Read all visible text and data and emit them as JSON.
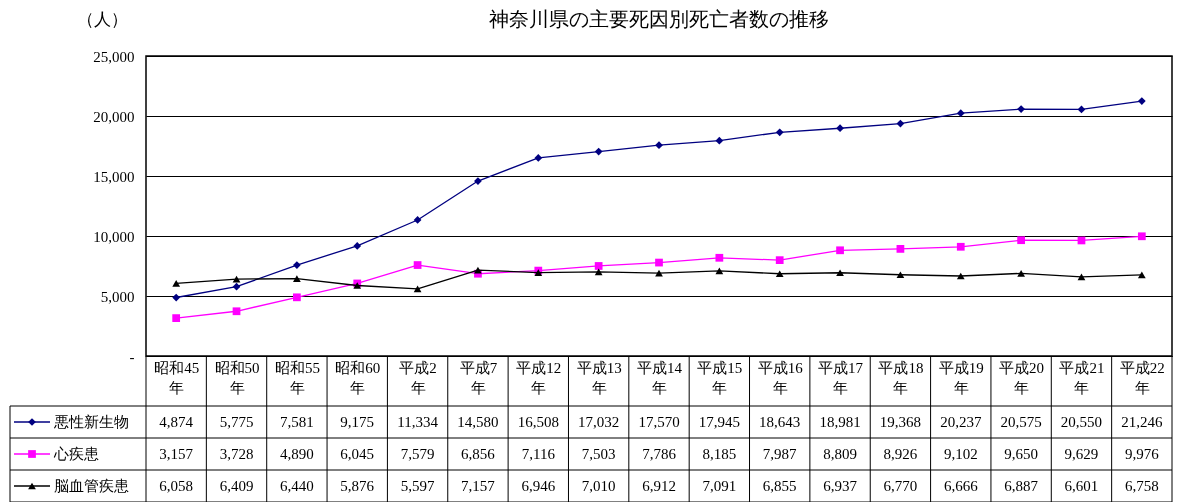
{
  "chart_data": {
    "type": "line",
    "title": "神奈川県の主要死因別死亡者数の推移",
    "ylabel": "（人）",
    "categories": [
      "昭和45年",
      "昭和50年",
      "昭和55年",
      "昭和60年",
      "平成2年",
      "平成7年",
      "平成12年",
      "平成13年",
      "平成14年",
      "平成15年",
      "平成16年",
      "平成17年",
      "平成18年",
      "平成19年",
      "平成20年",
      "平成21年",
      "平成22年"
    ],
    "series": [
      {
        "name": "悪性新生物",
        "color": "#000080",
        "marker": "diamond",
        "values": [
          4874,
          5775,
          7581,
          9175,
          11334,
          14580,
          16508,
          17032,
          17570,
          17945,
          18643,
          18981,
          19368,
          20237,
          20575,
          20550,
          21246
        ],
        "value_labels": [
          "4,874",
          "5,775",
          "7,581",
          "9,175",
          "11,334",
          "14,580",
          "16,508",
          "17,032",
          "17,570",
          "17,945",
          "18,643",
          "18,981",
          "19,368",
          "20,237",
          "20,575",
          "20,550",
          "21,246"
        ]
      },
      {
        "name": "心疾患",
        "color": "#ff00ff",
        "marker": "square",
        "values": [
          3157,
          3728,
          4890,
          6045,
          7579,
          6856,
          7116,
          7503,
          7786,
          8185,
          7987,
          8809,
          8926,
          9102,
          9650,
          9629,
          9976
        ],
        "value_labels": [
          "3,157",
          "3,728",
          "4,890",
          "6,045",
          "7,579",
          "6,856",
          "7,116",
          "7,503",
          "7,786",
          "8,185",
          "7,987",
          "8,809",
          "8,926",
          "9,102",
          "9,650",
          "9,629",
          "9,976"
        ]
      },
      {
        "name": "脳血管疾患",
        "color": "#000000",
        "marker": "triangle",
        "values": [
          6058,
          6409,
          6440,
          5876,
          5597,
          7157,
          6946,
          7010,
          6912,
          7091,
          6855,
          6937,
          6770,
          6666,
          6887,
          6601,
          6758
        ],
        "value_labels": [
          "6,058",
          "6,409",
          "6,440",
          "5,876",
          "5,597",
          "7,157",
          "6,946",
          "7,010",
          "6,912",
          "7,091",
          "6,855",
          "6,937",
          "6,770",
          "6,666",
          "6,887",
          "6,601",
          "6,758"
        ]
      }
    ],
    "ylim": [
      0,
      25000
    ],
    "yticks": [
      {
        "value": 0,
        "label": "-"
      },
      {
        "value": 5000,
        "label": "5,000"
      },
      {
        "value": 10000,
        "label": "10,000"
      },
      {
        "value": 15000,
        "label": "15,000"
      },
      {
        "value": 20000,
        "label": "20,000"
      },
      {
        "value": 25000,
        "label": "25,000"
      }
    ],
    "grid": "y",
    "legend": "bottom left",
    "line_style": "solid"
  }
}
